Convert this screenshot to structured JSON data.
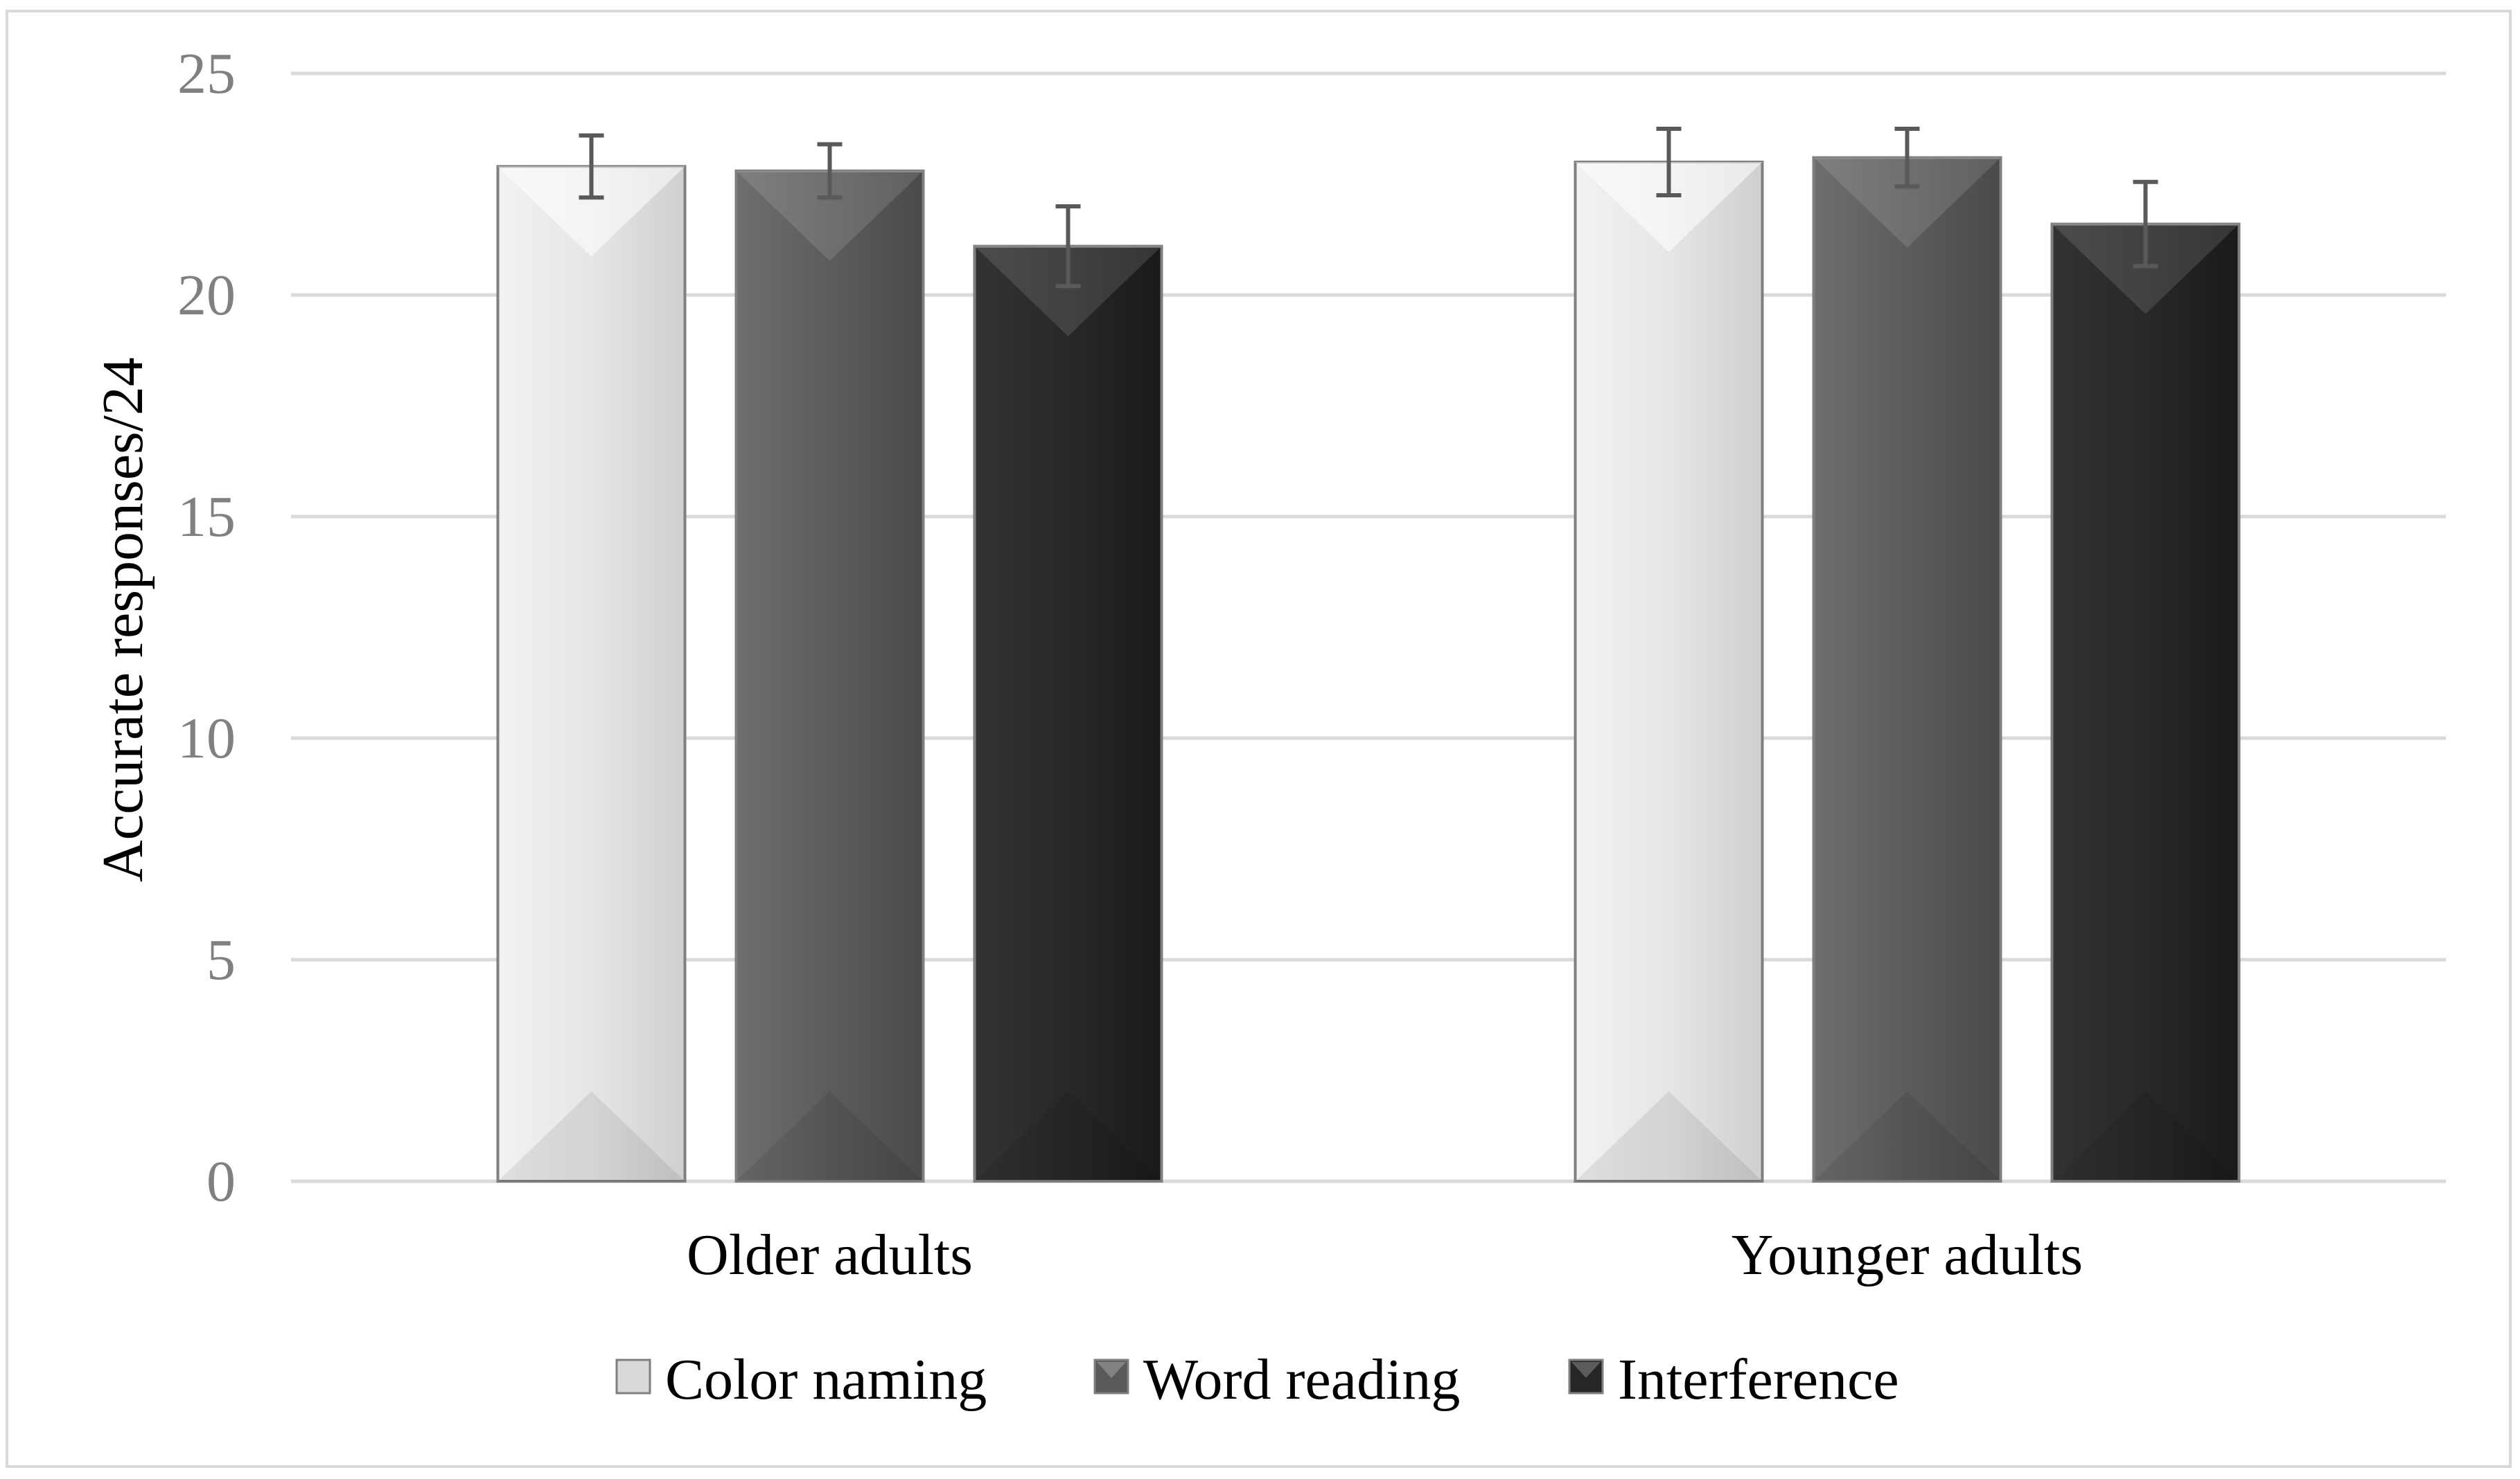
{
  "chart_data": {
    "type": "bar",
    "title": "",
    "xlabel": "",
    "ylabel": "Accurate responses/24",
    "ylim": [
      0,
      25
    ],
    "yticks": [
      0,
      5,
      10,
      15,
      20,
      25
    ],
    "grid": true,
    "legend_position": "bottom",
    "categories": [
      "Older adults",
      "Younger adults"
    ],
    "series": [
      {
        "name": "Color naming",
        "color": "#d9d9d9",
        "values": [
          22.9,
          23.0
        ],
        "error": [
          0.7,
          0.75
        ]
      },
      {
        "name": "Word reading",
        "color": "#5a5a5a",
        "values": [
          22.8,
          23.1
        ],
        "error": [
          0.6,
          0.65
        ]
      },
      {
        "name": "Interference",
        "color": "#262626",
        "values": [
          21.1,
          21.6
        ],
        "error": [
          0.9,
          0.95
        ]
      }
    ]
  }
}
